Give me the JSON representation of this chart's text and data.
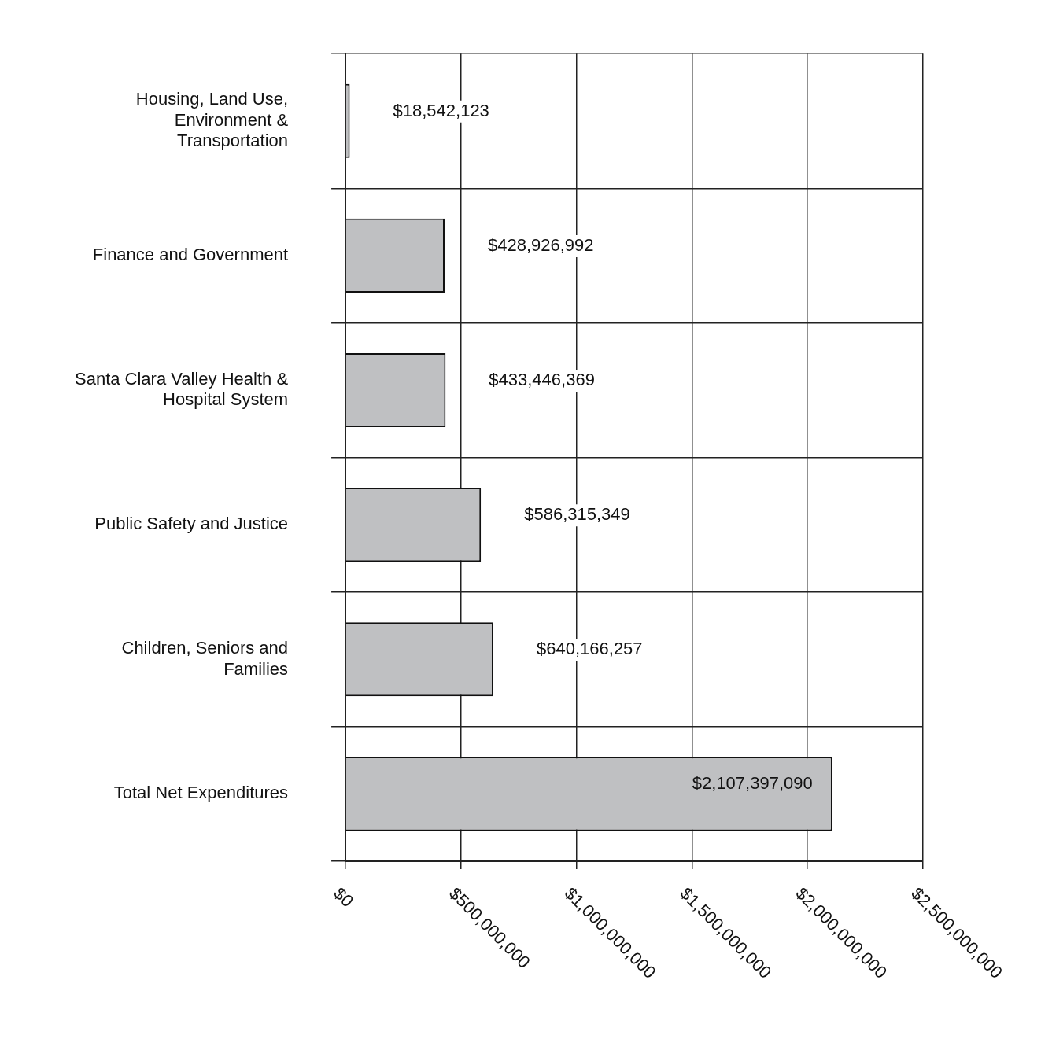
{
  "chart_data": {
    "type": "bar",
    "orientation": "horizontal",
    "categories": [
      "Housing, Land Use, Environment & Transportation",
      "Finance and Government",
      "Santa Clara Valley Health & Hospital System",
      "Public Safety and Justice",
      "Children, Seniors and Families",
      "Total Net Expenditures"
    ],
    "values": [
      18542123,
      428926992,
      433446369,
      586315349,
      640166257,
      2107397090
    ],
    "value_labels": [
      "$18,542,123",
      "$428,926,992",
      "$433,446,369",
      "$586,315,349",
      "$640,166,257",
      "$2,107,397,090"
    ],
    "color": "#bfc0c2",
    "xlim": [
      0,
      2500000000
    ],
    "xticks": [
      {
        "value": 0,
        "label": "$0"
      },
      {
        "value": 500000000,
        "label": "$500,000,000"
      },
      {
        "value": 1000000000,
        "label": "$1,000,000,000"
      },
      {
        "value": 1500000000,
        "label": "$1,500,000,000"
      },
      {
        "value": 2000000000,
        "label": "$2,000,000,000"
      },
      {
        "value": 2500000000,
        "label": "$2,500,000,000"
      }
    ],
    "grid": true,
    "legend": false
  }
}
